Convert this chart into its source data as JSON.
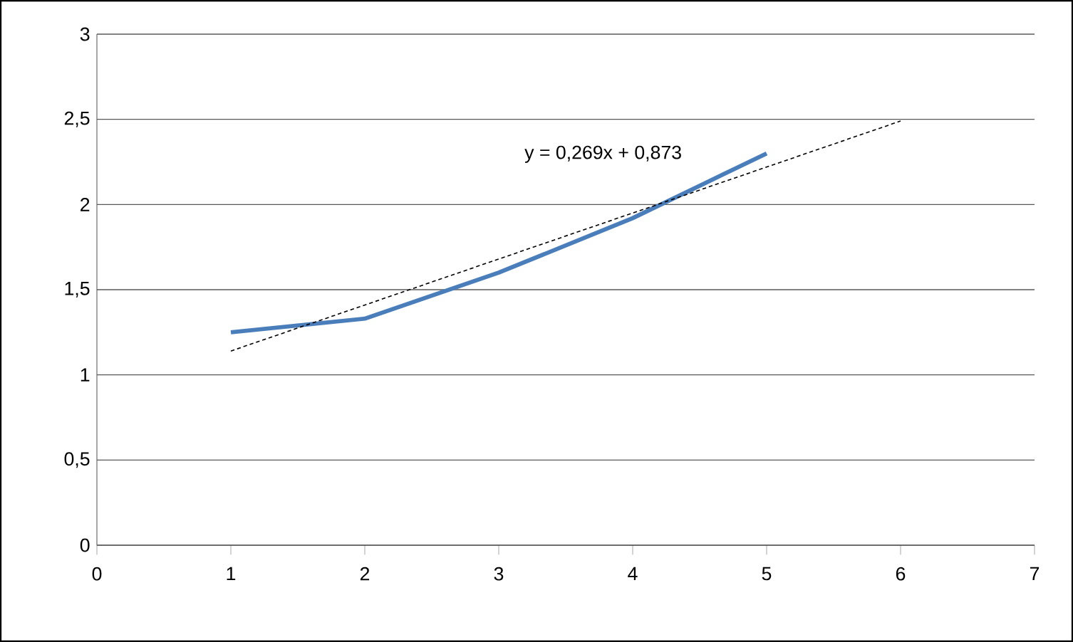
{
  "chart_data": {
    "type": "line",
    "x": [
      1,
      2,
      3,
      4,
      5
    ],
    "series": [
      {
        "color": "#4a7ebb",
        "values": [
          1.25,
          1.33,
          1.6,
          1.92,
          2.3
        ],
        "line_style": "solid"
      },
      {
        "color": "#000000",
        "x": [
          1,
          6
        ],
        "values": [
          1.14,
          2.49
        ],
        "line_style": "dashed"
      }
    ],
    "xlim": [
      0,
      7
    ],
    "xticks": [
      0,
      1,
      2,
      3,
      4,
      5,
      6,
      7
    ],
    "ylim": [
      0,
      3
    ],
    "yticks": [
      {
        "value": 0,
        "label": "0"
      },
      {
        "value": 0.5,
        "label": "0,5"
      },
      {
        "value": 1,
        "label": "1"
      },
      {
        "value": 1.5,
        "label": "1,5"
      },
      {
        "value": 2,
        "label": "2"
      },
      {
        "value": 2.5,
        "label": "2,5"
      },
      {
        "value": 3,
        "label": "3"
      }
    ],
    "grid": "y",
    "legend": false,
    "marker": "none",
    "annotations": [
      "y = 0,269x + 0,873"
    ]
  }
}
